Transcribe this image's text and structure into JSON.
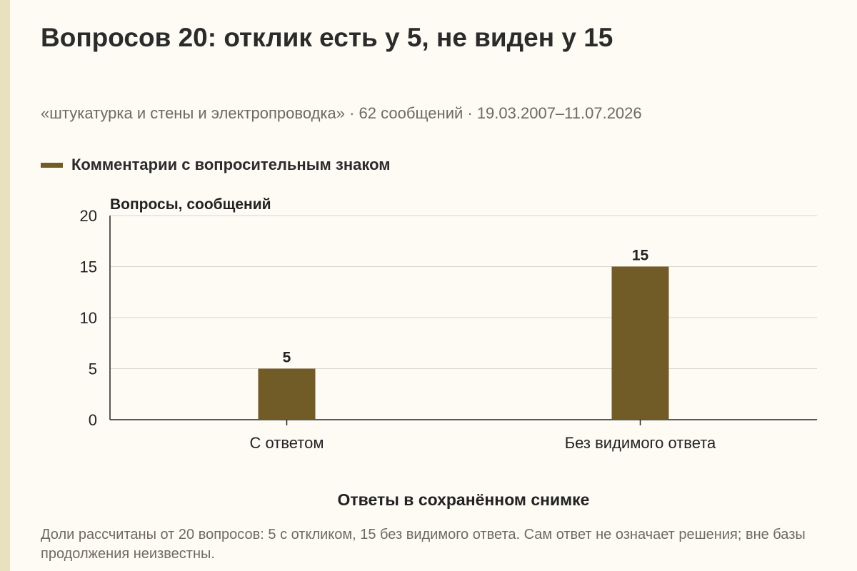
{
  "title": "Вопросов 20: отклик есть у 5, не виден у 15",
  "subtitle": "«штукатурка и стены и электропроводка» · 62 сообщений · 19.03.2007–11.07.2026",
  "note": "Доли рассчитаны от 20 вопросов: 5 с откликом, 15 без видимого ответа. Сам ответ не означает решения; вне базы продолжения неизвестны.",
  "colors": {
    "bar": "#715b27",
    "grid": "#d9d6cc",
    "axis": "#222222",
    "background": "#fdfbf4"
  },
  "chart_data": {
    "type": "bar",
    "categories": [
      "С ответом",
      "Без видимого ответа"
    ],
    "series": [
      {
        "name": "Комментарии с вопросительным знаком",
        "values": [
          5,
          15
        ]
      }
    ],
    "xlabel": "Ответы в сохранённом снимке",
    "ylabel": "Вопросы, сообщений",
    "ylim": [
      0,
      20
    ],
    "yticks": [
      0,
      5,
      10,
      15,
      20
    ],
    "grid": true,
    "legend": "top-left",
    "data_labels": true
  }
}
